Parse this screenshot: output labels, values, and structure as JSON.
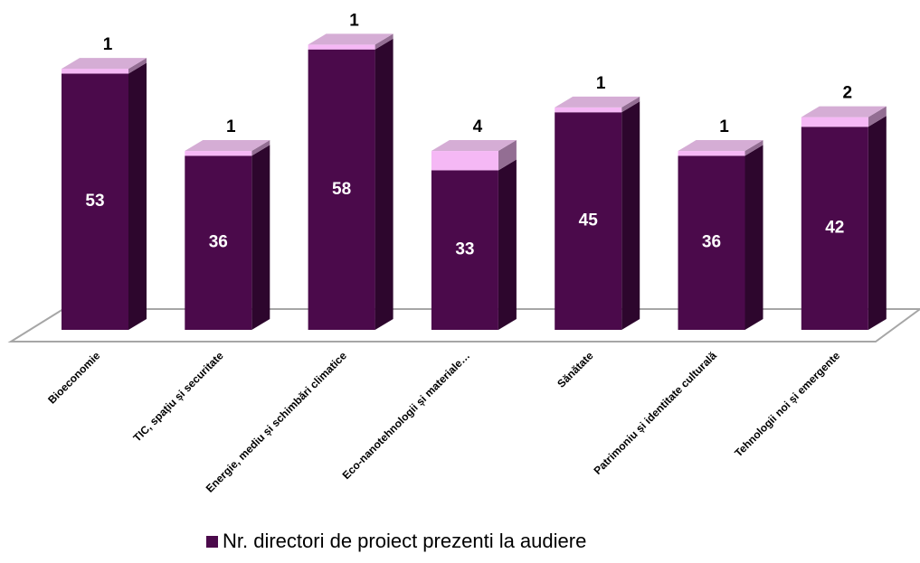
{
  "chart_data": {
    "type": "bar3d_stacked",
    "categories": [
      "Bioeconomie",
      "TIC, spaţiu și securitate",
      "Energie, mediu și schimbări climatice",
      "Eco-nanotehnologii și materiale…",
      "Sănătate",
      "Patrimoniu și identitate culturală",
      "Tehnologii noi și emergente"
    ],
    "series": [
      {
        "name": "Nr. directori de proiect prezenti la audiere",
        "color": "#4b0a4b",
        "values": [
          53,
          36,
          58,
          33,
          45,
          36,
          42
        ]
      },
      {
        "color": "#f5b8f5",
        "values": [
          1,
          1,
          1,
          4,
          1,
          1,
          2
        ]
      }
    ],
    "legend": "bottom"
  }
}
